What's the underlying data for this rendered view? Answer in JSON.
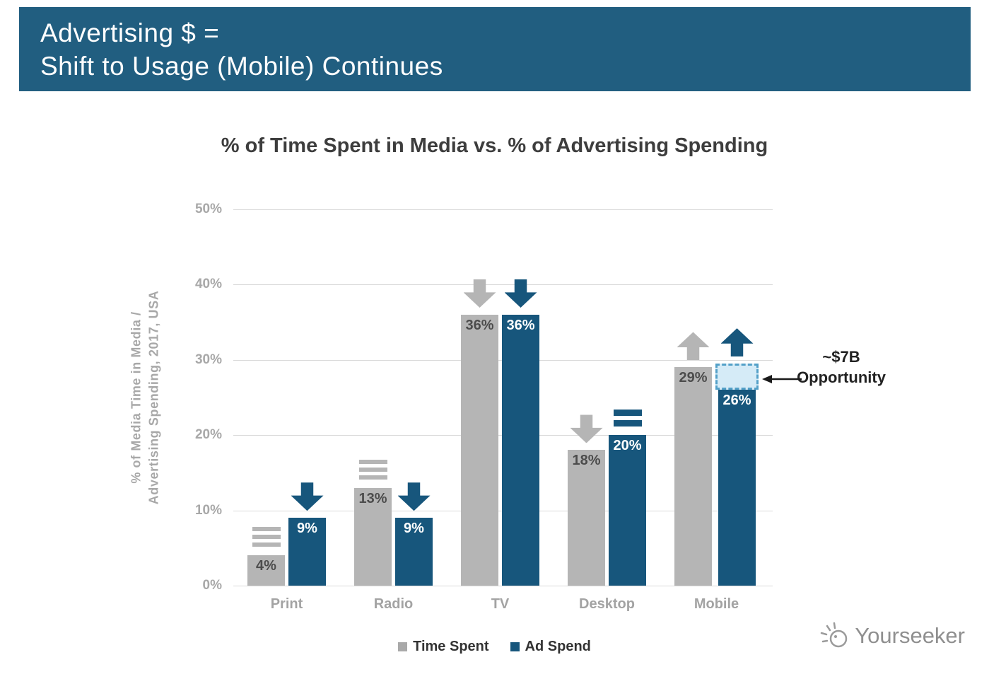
{
  "banner": {
    "line1": "Advertising $ =",
    "line2": "Shift to Usage (Mobile) Continues",
    "background_color": "#215e80",
    "text_color": "#ffffff"
  },
  "chart_data": {
    "type": "bar",
    "title": "% of Time Spent in Media vs. % of Advertising Spending",
    "ylabel": "% of Media Time in Media / Advertising Spending, 2017, USA",
    "ylabel_lines": [
      "% of Media Time in Media /",
      "Advertising Spending, 2017, USA"
    ],
    "categories": [
      "Print",
      "Radio",
      "TV",
      "Desktop",
      "Mobile"
    ],
    "series": [
      {
        "name": "Time Spent",
        "color": "#b5b5b5",
        "values": [
          4,
          13,
          36,
          18,
          29
        ],
        "trends": [
          "flat",
          "flat",
          "down",
          "down",
          "up"
        ]
      },
      {
        "name": "Ad Spend",
        "color": "#17567c",
        "values": [
          9,
          9,
          36,
          20,
          26
        ],
        "trends": [
          "down",
          "down",
          "down",
          "flat",
          "up"
        ]
      }
    ],
    "ylim": [
      0,
      50
    ],
    "yticks": [
      "0%",
      "10%",
      "20%",
      "30%",
      "40%",
      "50%"
    ],
    "grid": true,
    "legend_position": "bottom",
    "annotation": {
      "line1": "~$7B",
      "line2": "Opportunity",
      "target_category": "Mobile",
      "target_series": "Ad Spend",
      "box_from": 26,
      "box_to": 29.5
    }
  },
  "legend": {
    "items": [
      {
        "label": "Time Spent",
        "color": "#a9a9a9"
      },
      {
        "label": "Ad Spend",
        "color": "#17567c"
      }
    ]
  },
  "watermark": {
    "text": "Yourseeker"
  }
}
